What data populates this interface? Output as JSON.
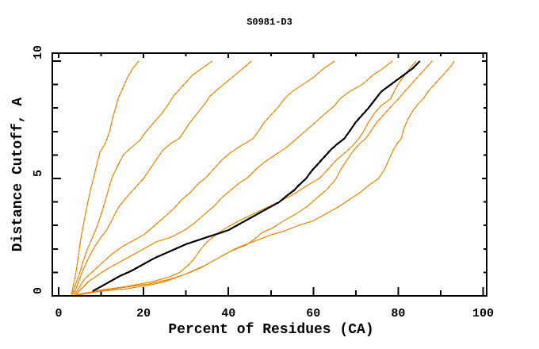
{
  "chart_data": {
    "type": "line",
    "title": "S0981-D3",
    "xlabel": "Percent of Residues (CA)",
    "ylabel": "Distance Cutoff, A",
    "xlim": [
      0,
      100
    ],
    "ylim": [
      0,
      10
    ],
    "grid": false,
    "legend": "none",
    "frame": "box-with-mirrored-inward-ticks",
    "x_ticks": {
      "major": [
        0,
        20,
        40,
        60,
        80,
        100
      ],
      "minor": [
        10,
        30,
        50,
        70,
        90
      ],
      "labels": [
        "0",
        "20",
        "40",
        "60",
        "80",
        "100"
      ]
    },
    "y_ticks": {
      "major": [
        0,
        5,
        10
      ],
      "minor": [
        1,
        2,
        3,
        4,
        6,
        7,
        8,
        9
      ],
      "labels": [
        "0",
        "5",
        "10"
      ]
    },
    "colors": {
      "model": "#EE8500",
      "highlight": "#000000",
      "frame": "#000000",
      "background": "#FFFFFF"
    },
    "series": [
      {
        "name": "orange-1",
        "role": "model",
        "color": "#EE8500",
        "width": 1.2,
        "points": [
          [
            3,
            0.05
          ],
          [
            3.4,
            0.4
          ],
          [
            4,
            0.9
          ],
          [
            4.6,
            1.6
          ],
          [
            5,
            2.2
          ],
          [
            5.6,
            2.8
          ],
          [
            6.2,
            3.4
          ],
          [
            7,
            4.1
          ],
          [
            7.6,
            4.6
          ],
          [
            8.2,
            5
          ],
          [
            9,
            5.6
          ],
          [
            9.7,
            6.1
          ],
          [
            11,
            6.5
          ],
          [
            12,
            7
          ],
          [
            12.6,
            7.5
          ],
          [
            13.4,
            8
          ],
          [
            14,
            8.4
          ],
          [
            15,
            8.8
          ],
          [
            16.2,
            9.3
          ],
          [
            17.5,
            9.7
          ],
          [
            18.9,
            10
          ]
        ]
      },
      {
        "name": "orange-2",
        "role": "model",
        "color": "#EE8500",
        "width": 1.2,
        "points": [
          [
            3.2,
            0.05
          ],
          [
            4,
            0.5
          ],
          [
            5,
            1
          ],
          [
            5.8,
            1.5
          ],
          [
            6.8,
            2
          ],
          [
            8,
            2.5
          ],
          [
            8.7,
            2.8
          ],
          [
            9.5,
            3.2
          ],
          [
            10.4,
            3.7
          ],
          [
            11.2,
            4.2
          ],
          [
            12,
            4.7
          ],
          [
            12.5,
            5
          ],
          [
            13.8,
            5.5
          ],
          [
            15.2,
            6
          ],
          [
            17,
            6.3
          ],
          [
            19,
            6.6
          ],
          [
            20.6,
            7
          ],
          [
            22.5,
            7.4
          ],
          [
            24.4,
            7.8
          ],
          [
            26,
            8.2
          ],
          [
            27,
            8.5
          ],
          [
            29,
            8.9
          ],
          [
            31.5,
            9.4
          ],
          [
            33.8,
            9.7
          ],
          [
            36.2,
            10
          ]
        ]
      },
      {
        "name": "orange-3",
        "role": "model",
        "color": "#EE8500",
        "width": 1.2,
        "points": [
          [
            3.5,
            0.05
          ],
          [
            4.5,
            0.5
          ],
          [
            5.5,
            1
          ],
          [
            7,
            1.6
          ],
          [
            8.5,
            2.1
          ],
          [
            10,
            2.5
          ],
          [
            11.3,
            2.8
          ],
          [
            12.2,
            3.1
          ],
          [
            13,
            3.4
          ],
          [
            14.2,
            3.8
          ],
          [
            16,
            4.2
          ],
          [
            17.5,
            4.5
          ],
          [
            19,
            4.8
          ],
          [
            20,
            5
          ],
          [
            21.5,
            5.4
          ],
          [
            23,
            5.8
          ],
          [
            24.5,
            6.2
          ],
          [
            26.5,
            6.5
          ],
          [
            28.4,
            6.7
          ],
          [
            29.5,
            7
          ],
          [
            31,
            7.4
          ],
          [
            32.8,
            7.8
          ],
          [
            34.5,
            8.2
          ],
          [
            35.6,
            8.5
          ],
          [
            37.5,
            8.8
          ],
          [
            39.5,
            9.1
          ],
          [
            41.5,
            9.4
          ],
          [
            43.5,
            9.7
          ],
          [
            45.4,
            10
          ]
        ]
      },
      {
        "name": "orange-4",
        "role": "model",
        "color": "#EE8500",
        "width": 1.2,
        "points": [
          [
            3.8,
            0.05
          ],
          [
            6,
            0.7
          ],
          [
            9,
            1.2
          ],
          [
            12,
            1.7
          ],
          [
            15,
            2.1
          ],
          [
            18,
            2.4
          ],
          [
            20,
            2.6
          ],
          [
            22,
            2.9
          ],
          [
            24.5,
            3.3
          ],
          [
            27,
            3.7
          ],
          [
            29,
            4.1
          ],
          [
            31,
            4.4
          ],
          [
            33,
            4.8
          ],
          [
            34.5,
            5
          ],
          [
            36.5,
            5.4
          ],
          [
            38.5,
            5.8
          ],
          [
            40.5,
            6.1
          ],
          [
            43,
            6.4
          ],
          [
            45.8,
            6.7
          ],
          [
            47,
            7
          ],
          [
            48.5,
            7.4
          ],
          [
            50.5,
            7.8
          ],
          [
            52,
            8.1
          ],
          [
            53.2,
            8.4
          ],
          [
            55,
            8.7
          ],
          [
            57.5,
            9
          ],
          [
            60,
            9.3
          ],
          [
            62.5,
            9.7
          ],
          [
            65,
            10
          ]
        ]
      },
      {
        "name": "orange-5",
        "role": "model",
        "color": "#EE8500",
        "width": 1.2,
        "points": [
          [
            4,
            0.05
          ],
          [
            7,
            0.6
          ],
          [
            11,
            1.1
          ],
          [
            15,
            1.5
          ],
          [
            19,
            1.9
          ],
          [
            23,
            2.3
          ],
          [
            26.5,
            2.5
          ],
          [
            29.7,
            2.8
          ],
          [
            32,
            3.1
          ],
          [
            34.5,
            3.5
          ],
          [
            36.5,
            3.8
          ],
          [
            38.5,
            4.2
          ],
          [
            40.5,
            4.5
          ],
          [
            42.5,
            4.8
          ],
          [
            44.3,
            5
          ],
          [
            46.5,
            5.4
          ],
          [
            48.5,
            5.7
          ],
          [
            51,
            6
          ],
          [
            53.5,
            6.3
          ],
          [
            56.1,
            6.7
          ],
          [
            58,
            7
          ],
          [
            60.5,
            7.4
          ],
          [
            63,
            7.8
          ],
          [
            65,
            8.1
          ],
          [
            66.3,
            8.4
          ],
          [
            68.5,
            8.7
          ],
          [
            71.5,
            9
          ],
          [
            74,
            9.4
          ],
          [
            76.5,
            9.7
          ],
          [
            78.6,
            10
          ]
        ]
      },
      {
        "name": "orange-6",
        "role": "model",
        "color": "#EE8500",
        "width": 1.2,
        "points": [
          [
            4.2,
            0.05
          ],
          [
            10,
            0.25
          ],
          [
            16,
            0.4
          ],
          [
            22,
            0.6
          ],
          [
            26,
            0.8
          ],
          [
            28.5,
            1
          ],
          [
            30.5,
            1.3
          ],
          [
            32,
            1.6
          ],
          [
            33.5,
            2
          ],
          [
            35,
            2.3
          ],
          [
            37,
            2.6
          ],
          [
            39.5,
            2.9
          ],
          [
            42.5,
            3.2
          ],
          [
            46,
            3.5
          ],
          [
            49.5,
            3.8
          ],
          [
            53,
            4.1
          ],
          [
            56,
            4.4
          ],
          [
            58.5,
            4.7
          ],
          [
            61.4,
            5
          ],
          [
            63.5,
            5.4
          ],
          [
            65.5,
            5.8
          ],
          [
            67.5,
            6.1
          ],
          [
            69.3,
            6.4
          ],
          [
            70.7,
            6.7
          ],
          [
            71.8,
            7
          ],
          [
            73,
            7.4
          ],
          [
            74.5,
            7.8
          ],
          [
            76,
            8.1
          ],
          [
            78.2,
            8.4
          ],
          [
            79.3,
            8.8
          ],
          [
            80.3,
            9.1
          ],
          [
            81.5,
            9.4
          ],
          [
            82.8,
            9.7
          ],
          [
            84.2,
            10
          ]
        ]
      },
      {
        "name": "orange-7",
        "role": "model",
        "color": "#EE8500",
        "width": 1.2,
        "points": [
          [
            4.5,
            0.05
          ],
          [
            9,
            0.2
          ],
          [
            15,
            0.35
          ],
          [
            21,
            0.5
          ],
          [
            26,
            0.7
          ],
          [
            29.5,
            0.9
          ],
          [
            32,
            1.1
          ],
          [
            34.5,
            1.3
          ],
          [
            36.5,
            1.5
          ],
          [
            38.5,
            1.7
          ],
          [
            40.5,
            1.9
          ],
          [
            42.5,
            2.05
          ],
          [
            44,
            2.15
          ],
          [
            46,
            2.4
          ],
          [
            48,
            2.7
          ],
          [
            50.5,
            2.9
          ],
          [
            53,
            3.2
          ],
          [
            56,
            3.5
          ],
          [
            58.5,
            3.8
          ],
          [
            61,
            4.2
          ],
          [
            63,
            4.5
          ],
          [
            64.5,
            4.8
          ],
          [
            65.4,
            5
          ],
          [
            66.5,
            5.4
          ],
          [
            68,
            5.8
          ],
          [
            69.5,
            6.2
          ],
          [
            71,
            6.5
          ],
          [
            72.3,
            6.7
          ],
          [
            73.5,
            7
          ],
          [
            75,
            7.4
          ],
          [
            77,
            7.8
          ],
          [
            78.5,
            8.1
          ],
          [
            80.1,
            8.4
          ],
          [
            81.5,
            8.7
          ],
          [
            83,
            9
          ],
          [
            84.5,
            9.3
          ],
          [
            86,
            9.6
          ],
          [
            88,
            10
          ]
        ]
      },
      {
        "name": "orange-8",
        "role": "model",
        "color": "#EE8500",
        "width": 1.2,
        "points": [
          [
            5,
            0.05
          ],
          [
            10,
            0.2
          ],
          [
            16,
            0.3
          ],
          [
            21,
            0.45
          ],
          [
            25,
            0.6
          ],
          [
            28,
            0.8
          ],
          [
            31,
            1
          ],
          [
            33.5,
            1.2
          ],
          [
            35.5,
            1.4
          ],
          [
            37.5,
            1.6
          ],
          [
            39.5,
            1.8
          ],
          [
            41.5,
            2
          ],
          [
            43.5,
            2.15
          ],
          [
            46.5,
            2.35
          ],
          [
            50,
            2.6
          ],
          [
            53,
            2.75
          ],
          [
            56.5,
            3
          ],
          [
            60,
            3.2
          ],
          [
            63,
            3.5
          ],
          [
            66,
            3.8
          ],
          [
            68.5,
            4.1
          ],
          [
            71,
            4.4
          ],
          [
            73,
            4.7
          ],
          [
            75.4,
            5
          ],
          [
            76.8,
            5.4
          ],
          [
            77.8,
            5.8
          ],
          [
            78.8,
            6.2
          ],
          [
            79.8,
            6.5
          ],
          [
            80.7,
            6.7
          ],
          [
            81.3,
            7.1
          ],
          [
            82.2,
            7.5
          ],
          [
            83.5,
            7.9
          ],
          [
            84.8,
            8.2
          ],
          [
            85.9,
            8.4
          ],
          [
            87,
            8.7
          ],
          [
            88.5,
            9
          ],
          [
            90,
            9.3
          ],
          [
            91.5,
            9.6
          ],
          [
            92.5,
            9.8
          ],
          [
            93.2,
            10
          ]
        ]
      },
      {
        "name": "black-highlight",
        "role": "highlighted-model",
        "color": "#000000",
        "width": 2.2,
        "points": [
          [
            8,
            0.2
          ],
          [
            10,
            0.4
          ],
          [
            12,
            0.6
          ],
          [
            14.5,
            0.85
          ],
          [
            17,
            1.05
          ],
          [
            19,
            1.25
          ],
          [
            20,
            1.35
          ],
          [
            22.5,
            1.6
          ],
          [
            25,
            1.8
          ],
          [
            27.5,
            2
          ],
          [
            30,
            2.2
          ],
          [
            32.5,
            2.35
          ],
          [
            35,
            2.5
          ],
          [
            37.5,
            2.65
          ],
          [
            40,
            2.8
          ],
          [
            42,
            3
          ],
          [
            44,
            3.2
          ],
          [
            46,
            3.4
          ],
          [
            48,
            3.6
          ],
          [
            50,
            3.8
          ],
          [
            52,
            4
          ],
          [
            54,
            4.3
          ],
          [
            55.5,
            4.5
          ],
          [
            56.5,
            4.7
          ],
          [
            58.3,
            5
          ],
          [
            59.5,
            5.3
          ],
          [
            61,
            5.6
          ],
          [
            62.5,
            5.9
          ],
          [
            64,
            6.2
          ],
          [
            65.5,
            6.45
          ],
          [
            67.3,
            6.7
          ],
          [
            68.5,
            7
          ],
          [
            70,
            7.4
          ],
          [
            71.5,
            7.7
          ],
          [
            73,
            8
          ],
          [
            74.7,
            8.4
          ],
          [
            76,
            8.7
          ],
          [
            77.5,
            8.9
          ],
          [
            79,
            9.1
          ],
          [
            80.5,
            9.3
          ],
          [
            82,
            9.5
          ],
          [
            83.5,
            9.7
          ],
          [
            84.3,
            9.85
          ],
          [
            85.1,
            10
          ]
        ]
      }
    ]
  }
}
